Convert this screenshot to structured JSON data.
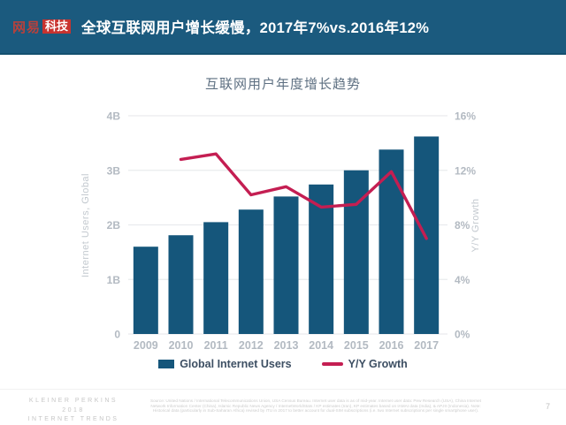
{
  "header": {
    "logo_brand": "网易",
    "logo_badge": "科技",
    "title": "全球互联网用户增长缓慢，2017年7%vs.2016年12%"
  },
  "chart_data": {
    "type": "bar",
    "title": "互联网用户年度增长趋势",
    "categories": [
      "2009",
      "2010",
      "2011",
      "2012",
      "2013",
      "2014",
      "2015",
      "2016",
      "2017"
    ],
    "series": [
      {
        "name": "Global Internet Users",
        "type": "bar",
        "axis": "left",
        "unit": "B",
        "color": "#15567b",
        "values": [
          1.6,
          1.81,
          2.05,
          2.28,
          2.52,
          2.74,
          3.0,
          3.38,
          3.62
        ]
      },
      {
        "name": "Y/Y Growth",
        "type": "line",
        "axis": "right",
        "unit": "%",
        "color": "#c41e52",
        "values": [
          null,
          12.8,
          13.2,
          10.2,
          10.8,
          9.3,
          9.5,
          11.9,
          7.0
        ]
      }
    ],
    "left_axis": {
      "label": "Internet Users, Global",
      "min": 0,
      "max": 4,
      "ticks": [
        "0",
        "1B",
        "2B",
        "3B",
        "4B"
      ]
    },
    "right_axis": {
      "label": "Y/Y Growth",
      "min": 0,
      "max": 16,
      "ticks": [
        "0%",
        "4%",
        "8%",
        "12%",
        "16%"
      ]
    },
    "grid": true,
    "legend_position": "bottom"
  },
  "legend": {
    "bar_label": "Global Internet Users",
    "line_label": "Y/Y Growth"
  },
  "footer": {
    "brand_line1": "KLEINER PERKINS",
    "brand_line2": "2018",
    "brand_line3": "INTERNET TRENDS",
    "source_note": "Source: United Nations / International Telecommunications Union, USA Census Bureau. Internet user data is as of mid-year. Internet user data: Pew Research (USA), China Internet Network Information Center (China), Islamic Republic News Agency / InternetWorldStats / KP estimates (Iran), KP estimates based on IAMAI data (India), & APJII (Indonesia). Note: Historical data (particularly in Sub-Saharan Africa) revised by ITU in 2017 to better account for dual-SIM subscriptions (i.e. two Internet subscriptions per single smartphone user).",
    "page_number": "7"
  },
  "colors": {
    "header_bg": "#1b5a7e",
    "bar": "#15567b",
    "line": "#c41e52",
    "logo_red": "#c8332f"
  }
}
